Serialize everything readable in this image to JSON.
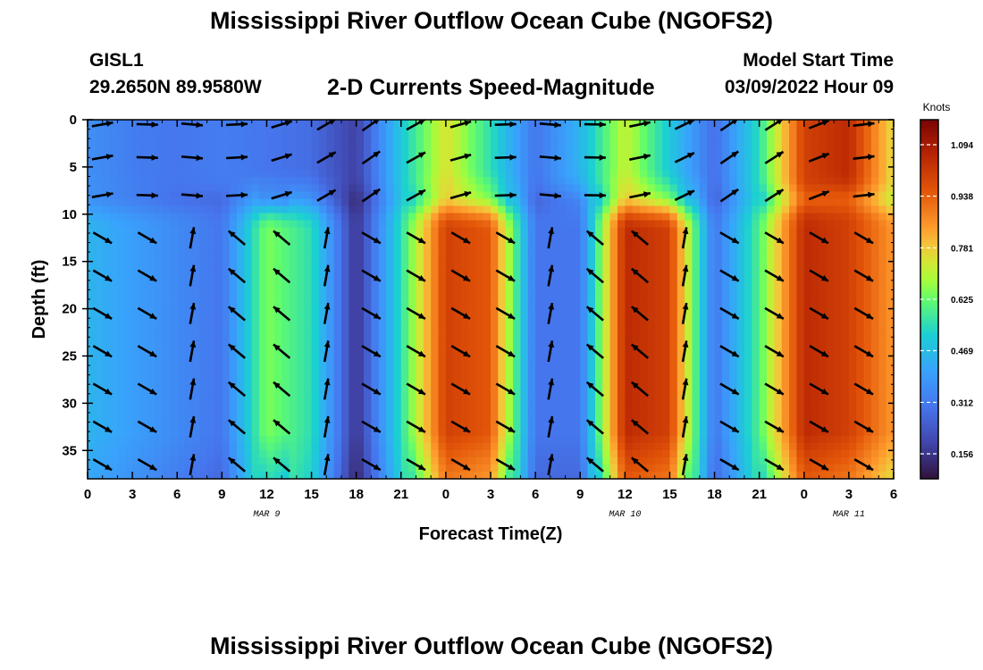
{
  "header": {
    "title": "Mississippi River Outflow Ocean Cube (NGOFS2)",
    "station": "GISL1",
    "coords": "29.2650N  89.9580W",
    "subtitle": "2-D Currents Speed-Magnitude",
    "start_label": "Model Start Time",
    "start_value": "03/09/2022 Hour 09"
  },
  "footer": {
    "title": "Mississippi River Outflow Ocean Cube (NGOFS2)"
  },
  "chart_data": {
    "type": "heatmap",
    "title": "2-D Currents Speed-Magnitude",
    "xlabel": "Forecast Time(Z)",
    "ylabel": "Depth (ft)",
    "x_tick_labels": [
      "0",
      "3",
      "6",
      "9",
      "12",
      "15",
      "18",
      "21",
      "0",
      "3",
      "6",
      "9",
      "12",
      "15",
      "18",
      "21",
      "0",
      "3",
      "6"
    ],
    "x_hour_range": [
      0,
      54
    ],
    "date_labels": [
      {
        "label": "MAR 9",
        "hour": 12
      },
      {
        "label": "MAR 10",
        "hour": 36
      },
      {
        "label": "MAR 11",
        "hour": 51
      }
    ],
    "y_ticks": [
      0,
      5,
      10,
      15,
      20,
      25,
      30,
      35
    ],
    "ylim": [
      0,
      38
    ],
    "y_inverted": true,
    "colorbar": {
      "unit": "Knots",
      "range": [
        0.08,
        1.17
      ],
      "tick_labels": [
        "1.094",
        "0.938",
        "0.781",
        "0.625",
        "0.469",
        "0.312",
        "0.156"
      ],
      "tick_values": [
        1.094,
        0.938,
        0.781,
        0.625,
        0.469,
        0.312,
        0.156
      ]
    },
    "surface_speed_by_hour": [
      [
        0,
        0.36
      ],
      [
        3,
        0.32
      ],
      [
        6,
        0.3
      ],
      [
        9,
        0.32
      ],
      [
        12,
        0.3
      ],
      [
        15,
        0.28
      ],
      [
        18,
        0.18
      ],
      [
        21,
        0.5
      ],
      [
        24,
        0.75
      ],
      [
        27,
        0.55
      ],
      [
        30,
        0.3
      ],
      [
        33,
        0.45
      ],
      [
        36,
        0.72
      ],
      [
        39,
        0.5
      ],
      [
        42,
        0.28
      ],
      [
        45,
        0.55
      ],
      [
        48,
        1.0
      ],
      [
        51,
        1.05
      ],
      [
        54,
        0.75
      ]
    ],
    "mid_speed_by_hour": [
      [
        0,
        0.45
      ],
      [
        3,
        0.4
      ],
      [
        6,
        0.35
      ],
      [
        9,
        0.3
      ],
      [
        12,
        0.65
      ],
      [
        15,
        0.55
      ],
      [
        18,
        0.15
      ],
      [
        21,
        0.55
      ],
      [
        24,
        1.0
      ],
      [
        27,
        0.95
      ],
      [
        30,
        0.3
      ],
      [
        33,
        0.3
      ],
      [
        36,
        1.05
      ],
      [
        39,
        1.0
      ],
      [
        42,
        0.3
      ],
      [
        45,
        0.6
      ],
      [
        48,
        1.05
      ],
      [
        51,
        1.0
      ],
      [
        54,
        0.85
      ]
    ]
  }
}
